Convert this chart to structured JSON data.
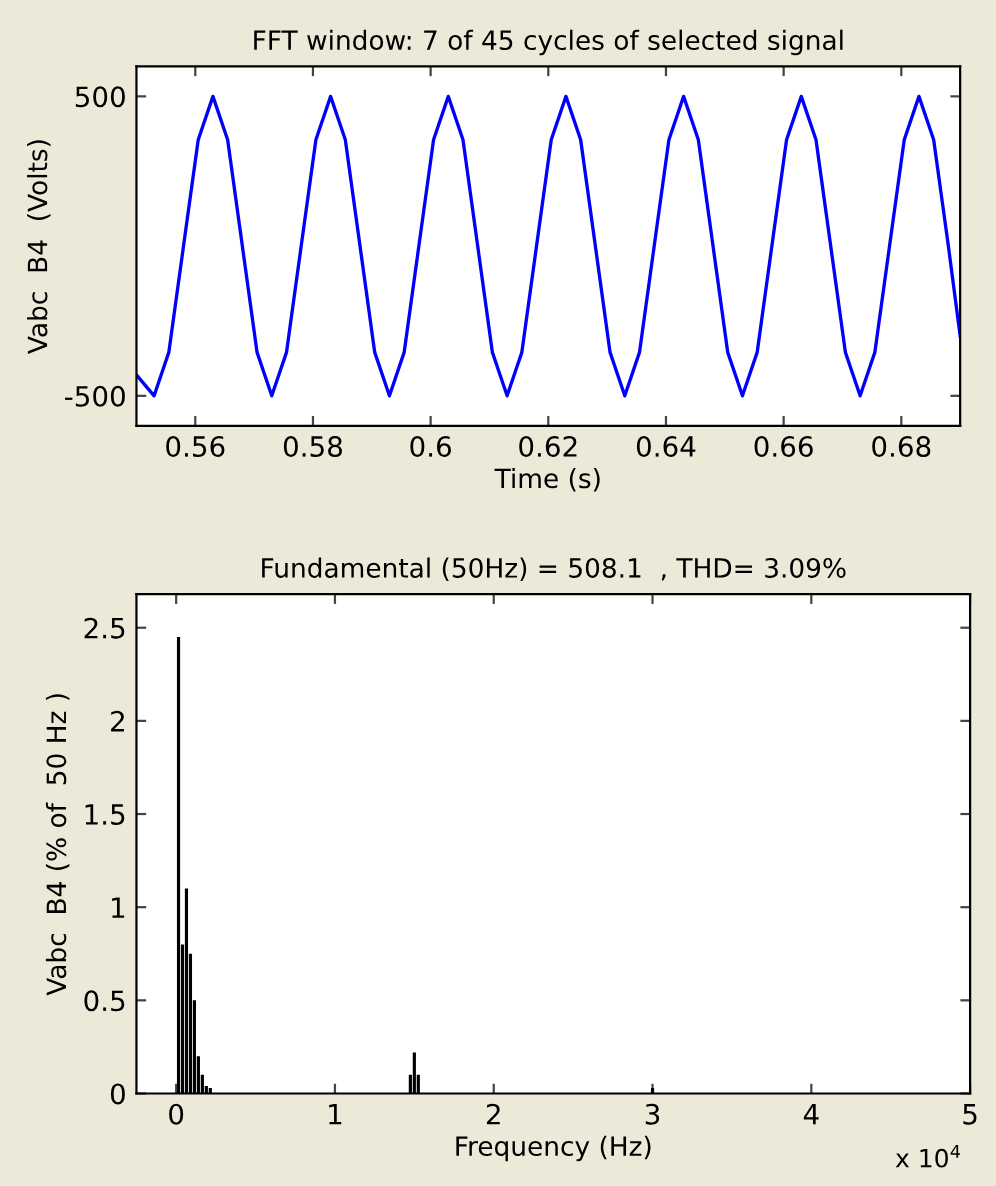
{
  "chart_data": [
    {
      "type": "line",
      "title": "FFT window: 7 of 45 cycles of selected signal",
      "xlabel": "Time (s)",
      "ylabel": "Vabc  B4  (Volts)",
      "x": [
        0.55,
        0.553,
        0.5555,
        0.558,
        0.5605,
        0.563,
        0.5655,
        0.568,
        0.5705,
        0.573,
        0.5755,
        0.578,
        0.5805,
        0.583,
        0.5855,
        0.588,
        0.5905,
        0.593,
        0.5955,
        0.598,
        0.6005,
        0.603,
        0.6055,
        0.608,
        0.6105,
        0.613,
        0.6155,
        0.618,
        0.6205,
        0.623,
        0.6255,
        0.628,
        0.6305,
        0.633,
        0.6355,
        0.638,
        0.6405,
        0.643,
        0.6455,
        0.648,
        0.6505,
        0.653,
        0.6555,
        0.658,
        0.6605,
        0.663,
        0.6655,
        0.668,
        0.6705,
        0.673,
        0.6755,
        0.678,
        0.6805,
        0.683,
        0.6855,
        0.688,
        0.69
      ],
      "series": [
        {
          "color": "#0000ff",
          "values": [
            -430,
            -500,
            -355,
            0,
            355,
            500,
            355,
            0,
            -355,
            -500,
            -355,
            0,
            355,
            500,
            355,
            0,
            -355,
            -500,
            -355,
            0,
            355,
            500,
            355,
            0,
            -355,
            -500,
            -355,
            0,
            355,
            500,
            355,
            0,
            -355,
            -500,
            -355,
            0,
            355,
            500,
            355,
            0,
            -355,
            -500,
            -355,
            0,
            355,
            500,
            355,
            0,
            -355,
            -500,
            -355,
            0,
            355,
            500,
            355,
            0,
            -300
          ]
        }
      ],
      "xlim": [
        0.55,
        0.69
      ],
      "ylim": [
        -600,
        600
      ],
      "xticks": [
        0.56,
        0.58,
        {
          "value": 0.6,
          "label": "0.6"
        },
        0.62,
        0.64,
        0.66,
        0.68
      ],
      "yticks": [
        -500,
        500
      ],
      "grid": false,
      "legend": false
    },
    {
      "type": "bar",
      "title": "Fundamental (50Hz) = 508.1  , THD= 3.09%",
      "xlabel": "Frequency (Hz)",
      "ylabel": "Vabc  B4 (% of  50 Hz )",
      "x": [
        0.015,
        0.04,
        0.065,
        0.09,
        0.115,
        0.14,
        0.165,
        0.19,
        0.215,
        1.475,
        1.5,
        1.525,
        3.0
      ],
      "series": [
        {
          "color": "#000000",
          "values": [
            2.45,
            0.8,
            1.1,
            0.75,
            0.5,
            0.2,
            0.1,
            0.04,
            0.03,
            0.1,
            0.22,
            0.1,
            0.03
          ]
        }
      ],
      "xlim": [
        -0.25,
        5
      ],
      "ylim": [
        0,
        2.68
      ],
      "xticks": [
        0,
        1,
        2,
        3,
        4,
        5
      ],
      "yticks": [
        0,
        0.5,
        1,
        1.5,
        2,
        2.5
      ],
      "grid": false,
      "legend": false,
      "annotations": [
        "x 10$^{4}$"
      ]
    }
  ]
}
